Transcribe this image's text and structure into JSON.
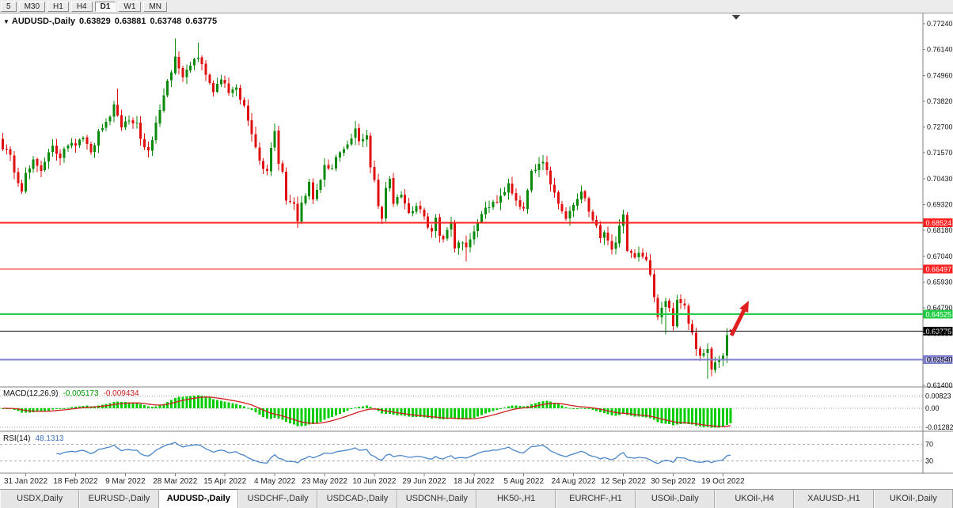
{
  "toolbar": {
    "periods": [
      "5",
      "M30",
      "H1",
      "H4",
      "D1",
      "W1",
      "MN"
    ],
    "active": "D1"
  },
  "chart_header": {
    "marker_icon": "symbol-marker",
    "symbol_label": "AUDUSD-,Daily",
    "open": "0.63829",
    "high": "0.63881",
    "low": "0.63748",
    "close": "0.63775"
  },
  "price_axis": {
    "top": 0.7724,
    "bottom": 0.614,
    "labels": [
      "0.77240",
      "0.76140",
      "0.74960",
      "0.73820",
      "0.72700",
      "0.71570",
      "0.70430",
      "0.69320",
      "0.68180",
      "0.67040",
      "0.65930",
      "0.64790",
      "0.63650",
      "0.62540",
      "0.61400"
    ]
  },
  "levels": [
    {
      "name": "resistance-upper",
      "price": 0.68524,
      "label": "0.68524",
      "color": "#ff2020",
      "width": 2
    },
    {
      "name": "resistance-lower",
      "price": 0.66497,
      "label": "0.66497",
      "color": "#ff2020",
      "width": 1
    },
    {
      "name": "support-green",
      "price": 0.64525,
      "label": "0.64525",
      "color": "#22cc44",
      "width": 2
    },
    {
      "name": "current-price-line",
      "price": 0.63775,
      "label": "0.63775",
      "color": "#000000",
      "width": 1
    },
    {
      "name": "support-purple",
      "price": 0.62524,
      "label": "0.62524",
      "color": "#8080d0",
      "width": 2
    }
  ],
  "chart_data": {
    "type": "candlestick",
    "symbol": "AUDUSD-",
    "timeframe": "Daily",
    "num_candles": 191,
    "seed": 20221021,
    "last_ohlc": {
      "open": 0.63829,
      "high": 0.63881,
      "low": 0.63748,
      "close": 0.63775
    },
    "anchors": [
      [
        0,
        0.7175
      ],
      [
        2,
        0.715
      ],
      [
        4,
        0.7025
      ],
      [
        5,
        0.699
      ],
      [
        6,
        0.707
      ],
      [
        8,
        0.713
      ],
      [
        10,
        0.708
      ],
      [
        13,
        0.719
      ],
      [
        15,
        0.7135
      ],
      [
        17,
        0.719
      ],
      [
        19,
        0.719
      ],
      [
        21,
        0.7225
      ],
      [
        23,
        0.716
      ],
      [
        25,
        0.7255
      ],
      [
        27,
        0.7295
      ],
      [
        29,
        0.737
      ],
      [
        31,
        0.727
      ],
      [
        33,
        0.73
      ],
      [
        35,
        0.729
      ],
      [
        36,
        0.722
      ],
      [
        38,
        0.717
      ],
      [
        40,
        0.729
      ],
      [
        42,
        0.741
      ],
      [
        44,
        0.751
      ],
      [
        45,
        0.758
      ],
      [
        47,
        0.749
      ],
      [
        49,
        0.754
      ],
      [
        51,
        0.7575
      ],
      [
        53,
        0.75
      ],
      [
        55,
        0.7425
      ],
      [
        57,
        0.748
      ],
      [
        59,
        0.742
      ],
      [
        61,
        0.7445
      ],
      [
        63,
        0.7365
      ],
      [
        65,
        0.724
      ],
      [
        67,
        0.7125
      ],
      [
        69,
        0.708
      ],
      [
        71,
        0.7255
      ],
      [
        72,
        0.711
      ],
      [
        73,
        0.7075
      ],
      [
        74,
        0.695
      ],
      [
        76,
        0.6935
      ],
      [
        77,
        0.686
      ],
      [
        78,
        0.694
      ],
      [
        79,
        0.697
      ],
      [
        80,
        0.703
      ],
      [
        81,
        0.6955
      ],
      [
        83,
        0.704
      ],
      [
        84,
        0.7105
      ],
      [
        86,
        0.709
      ],
      [
        88,
        0.716
      ],
      [
        90,
        0.7195
      ],
      [
        92,
        0.7265
      ],
      [
        93,
        0.721
      ],
      [
        95,
        0.7235
      ],
      [
        96,
        0.7095
      ],
      [
        97,
        0.704
      ],
      [
        98,
        0.6925
      ],
      [
        99,
        0.687
      ],
      [
        100,
        0.7005
      ],
      [
        101,
        0.7045
      ],
      [
        102,
        0.6935
      ],
      [
        104,
        0.6975
      ],
      [
        106,
        0.6895
      ],
      [
        108,
        0.6925
      ],
      [
        110,
        0.688
      ],
      [
        112,
        0.6815
      ],
      [
        113,
        0.6875
      ],
      [
        114,
        0.6795
      ],
      [
        115,
        0.678
      ],
      [
        117,
        0.6855
      ],
      [
        118,
        0.674
      ],
      [
        120,
        0.6765
      ],
      [
        121,
        0.6745
      ],
      [
        123,
        0.6815
      ],
      [
        125,
        0.689
      ],
      [
        127,
        0.692
      ],
      [
        129,
        0.694
      ],
      [
        131,
        0.6985
      ],
      [
        132,
        0.7025
      ],
      [
        134,
        0.695
      ],
      [
        136,
        0.6915
      ],
      [
        138,
        0.708
      ],
      [
        140,
        0.711
      ],
      [
        141,
        0.712
      ],
      [
        143,
        0.702
      ],
      [
        145,
        0.6935
      ],
      [
        147,
        0.687
      ],
      [
        149,
        0.693
      ],
      [
        151,
        0.699
      ],
      [
        153,
        0.69
      ],
      [
        155,
        0.684
      ],
      [
        156,
        0.6785
      ],
      [
        157,
        0.681
      ],
      [
        159,
        0.6735
      ],
      [
        160,
        0.6765
      ],
      [
        161,
        0.684
      ],
      [
        162,
        0.6888
      ],
      [
        163,
        0.673
      ],
      [
        165,
        0.67
      ],
      [
        166,
        0.672
      ],
      [
        168,
        0.669
      ],
      [
        169,
        0.6625
      ],
      [
        170,
        0.6526
      ],
      [
        171,
        0.644
      ],
      [
        172,
        0.648
      ],
      [
        173,
        0.651
      ],
      [
        174,
        0.648
      ],
      [
        175,
        0.64
      ],
      [
        176,
        0.6515
      ],
      [
        177,
        0.65
      ],
      [
        178,
        0.649
      ],
      [
        179,
        0.641
      ],
      [
        180,
        0.637
      ],
      [
        181,
        0.63
      ],
      [
        182,
        0.627
      ],
      [
        183,
        0.628
      ],
      [
        184,
        0.63
      ],
      [
        185,
        0.621
      ],
      [
        186,
        0.624
      ],
      [
        187,
        0.625
      ],
      [
        188,
        0.627
      ],
      [
        189,
        0.636
      ],
      [
        190,
        0.63775
      ]
    ],
    "wick_lows": [
      [
        77,
        0.6829
      ],
      [
        121,
        0.6682
      ],
      [
        173,
        0.6363
      ],
      [
        184,
        0.617
      ]
    ],
    "wick_highs": [
      [
        30,
        0.744
      ],
      [
        45,
        0.766
      ],
      [
        51,
        0.764
      ],
      [
        140,
        0.7136
      ]
    ],
    "x_labels": [
      "31 Jan 2022",
      "18 Feb 2022",
      "9 Mar 2022",
      "28 Mar 2022",
      "15 Apr 2022",
      "4 May 2022",
      "23 May 2022",
      "10 Jun 2022",
      "29 Jun 2022",
      "18 Jul 2022",
      "5 Aug 2022",
      "24 Aug 2022",
      "12 Sep 2022",
      "30 Sep 2022",
      "19 Oct 2022"
    ],
    "label_indices": [
      6,
      19,
      32,
      45,
      58,
      71,
      84,
      97,
      110,
      123,
      136,
      149,
      162,
      175,
      188
    ]
  },
  "macd": {
    "label": "MACD(12,26,9)",
    "value_main": "-0.005173",
    "value_signal": "-0.009434",
    "params": [
      12,
      26,
      9
    ],
    "axis_values": [
      0.00823,
      0,
      -0.01282
    ],
    "axis_labels": [
      "0.00823",
      "0.00",
      "-0.01282"
    ]
  },
  "rsi": {
    "label": "RSI(14)",
    "value": "48.1313",
    "period": 14,
    "levels": [
      70,
      30
    ],
    "axis_labels": [
      "70",
      "30"
    ]
  },
  "annotations": {
    "arrow": {
      "direction": "up",
      "color": "#e02020"
    }
  },
  "colors": {
    "up_candle": "#0a8a0a",
    "down_candle": "#e01010",
    "macd_histogram": "#00cc00",
    "macd_signal": "#d02020",
    "rsi_line": "#4a86c8",
    "axis_text": "#111111",
    "separator": "#808080"
  },
  "tabs": [
    "USDX,Daily",
    "EURUSD-,Daily",
    "AUDUSD-,Daily",
    "USDCHF-,Daily",
    "USDCAD-,Daily",
    "USDCNH-,Daily",
    "HK50-,H1",
    "EURCHF-,H1",
    "USOil-,Daily",
    "UKOil-,H4",
    "XAUUSD-,H1",
    "UKOil-,Daily"
  ],
  "active_tab": "AUDUSD-,Daily"
}
